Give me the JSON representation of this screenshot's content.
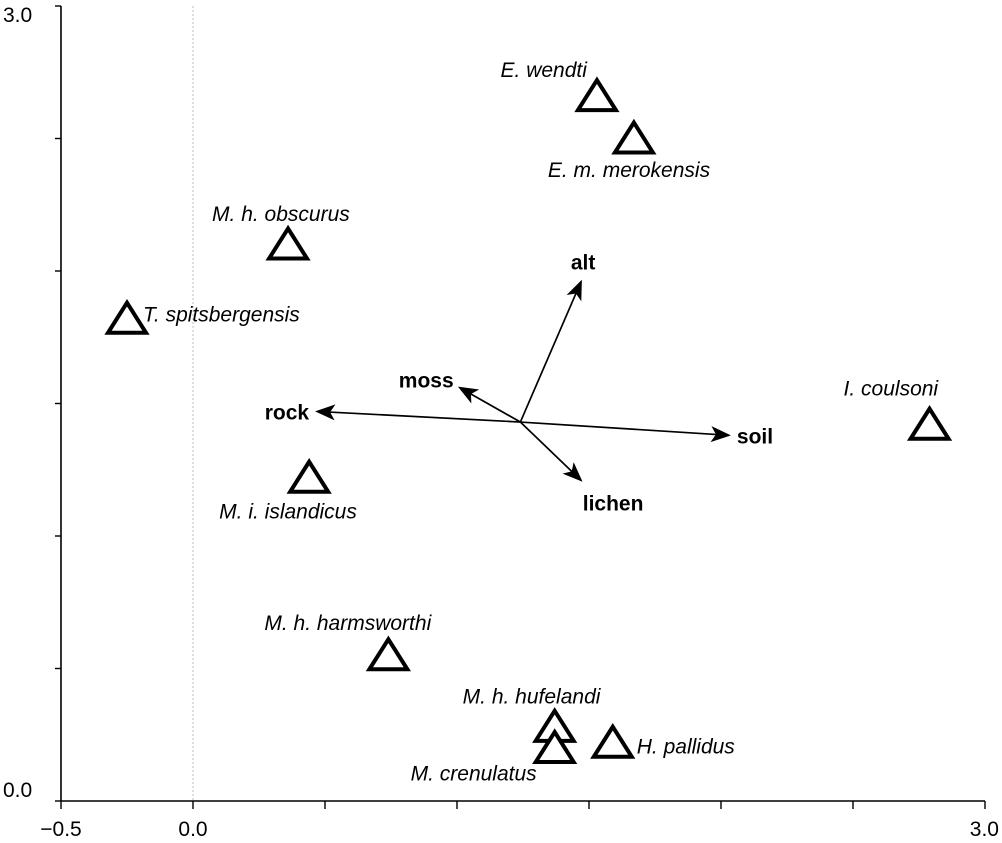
{
  "chart_data": {
    "type": "scatter",
    "title": "",
    "xlabel": "",
    "ylabel": "",
    "xlim": [
      -0.5,
      3.0
    ],
    "ylim": [
      0.0,
      3.0
    ],
    "x_tick_labels": [
      {
        "value": -0.5,
        "label": "−0.5"
      },
      {
        "value": 0.0,
        "label": "0.0"
      },
      {
        "value": 3.0,
        "label": "3.0"
      }
    ],
    "y_tick_labels": [
      {
        "value": 3.0,
        "label": "3.0"
      },
      {
        "value": 0.0,
        "label": "0.0"
      }
    ],
    "x_minor_ticks": [
      0.5,
      1.0,
      1.5,
      2.0,
      2.5
    ],
    "y_minor_ticks": [
      0.5,
      1.0,
      1.5,
      2.0,
      2.5
    ],
    "zero_reference_line": "dotted vertical at x = 0.0",
    "grid": false,
    "species": [
      {
        "name": "E. wendti",
        "x": 1.53,
        "y": 2.65
      },
      {
        "name": "E. m. merokensis",
        "x": 1.67,
        "y": 2.49
      },
      {
        "name": "M. h. obscurus",
        "x": 0.36,
        "y": 2.09
      },
      {
        "name": "T. spitsbergensis",
        "x": -0.25,
        "y": 1.81
      },
      {
        "name": "I. coulsoni",
        "x": 2.79,
        "y": 1.41
      },
      {
        "name": "M. i. islandicus",
        "x": 0.44,
        "y": 1.21
      },
      {
        "name": "M. h. harmsworthi",
        "x": 0.74,
        "y": 0.54
      },
      {
        "name": "M. h. hufelandi",
        "x": 1.37,
        "y": 0.27
      },
      {
        "name": "H. pallidus",
        "x": 1.59,
        "y": 0.21
      },
      {
        "name": "M. crenulatus",
        "x": 1.37,
        "y": 0.19
      }
    ],
    "environmental_vectors": {
      "origin": {
        "x": 1.24,
        "y": 1.43
      },
      "arrows": [
        {
          "name": "alt",
          "x": 1.47,
          "y": 1.96
        },
        {
          "name": "moss",
          "x": 1.01,
          "y": 1.56
        },
        {
          "name": "rock",
          "x": 0.47,
          "y": 1.47
        },
        {
          "name": "soil",
          "x": 2.03,
          "y": 1.38
        },
        {
          "name": "lichen",
          "x": 1.47,
          "y": 1.21
        }
      ]
    }
  },
  "colors": {
    "axis": "#000000",
    "marker_fill": "#ffffff",
    "marker_stroke": "#000000",
    "zero_line": "#c8c8c8"
  }
}
